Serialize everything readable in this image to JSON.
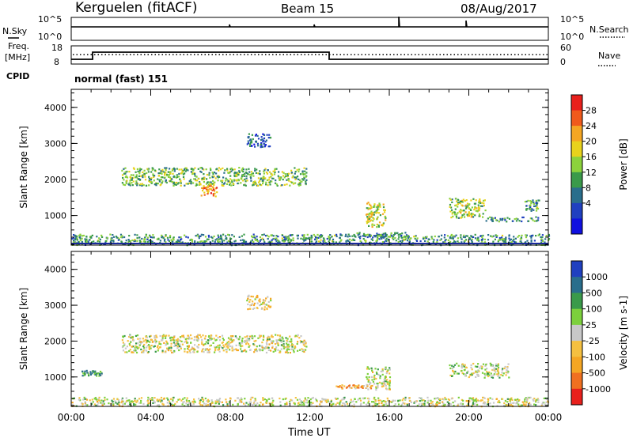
{
  "header": {
    "station": "Kerguelen (fitACF)",
    "beam": "Beam 15",
    "date": "08/Aug/2017"
  },
  "top_panels": {
    "nsky_label": "N.Sky",
    "nsearch_label": "N.Search",
    "nsky_ticks": [
      "10^5",
      "10^0"
    ],
    "nsearch_ticks": [
      "10^5",
      "10^0"
    ],
    "freq_label_1": "Freq.",
    "freq_label_2": "[MHz]",
    "freq_ticks": [
      "18",
      "8"
    ],
    "nave_label": "Nave",
    "nave_ticks": [
      "60",
      "0"
    ],
    "cpid_label": "CPID",
    "cpid_value": "normal (fast) 151"
  },
  "chart_data": [
    {
      "type": "heatmap",
      "name": "power",
      "ylabel": "Slant Range [km]",
      "xlabel": "Time UT",
      "xlim": [
        0,
        24
      ],
      "ylim": [
        180,
        4500
      ],
      "yticks": [
        1000,
        2000,
        3000,
        4000
      ],
      "xticks": [
        "00:00",
        "04:00",
        "08:00",
        "12:00",
        "16:00",
        "20:00",
        "00:00"
      ],
      "colorbar": {
        "label": "Power [dB]",
        "ticks": [
          "28",
          "24",
          "20",
          "16",
          "12",
          "8",
          "4"
        ],
        "colors": [
          "#e8201c",
          "#f05a1c",
          "#f5a623",
          "#e8d21c",
          "#8cd23c",
          "#3a9a4a",
          "#2a6e8c",
          "#2040c0",
          "#1010e0"
        ]
      },
      "blobs": [
        {
          "t0": 2.5,
          "t1": 11.8,
          "r0": 1850,
          "r1": 2350,
          "level": 0.45
        },
        {
          "t0": 6.5,
          "t1": 7.3,
          "r0": 1550,
          "r1": 1850,
          "level": 0.8
        },
        {
          "t0": 8.8,
          "t1": 10.0,
          "r0": 2900,
          "r1": 3300,
          "level": 0.2
        },
        {
          "t0": 14.8,
          "t1": 15.8,
          "r0": 700,
          "r1": 1400,
          "level": 0.55
        },
        {
          "t0": 13.5,
          "t1": 17.0,
          "r0": 420,
          "r1": 560,
          "level": 0.3
        },
        {
          "t0": 19.0,
          "t1": 20.8,
          "r0": 950,
          "r1": 1500,
          "level": 0.5
        },
        {
          "t0": 20.8,
          "t1": 23.5,
          "r0": 850,
          "r1": 980,
          "level": 0.3
        },
        {
          "t0": 22.8,
          "t1": 23.5,
          "r0": 1150,
          "r1": 1450,
          "level": 0.35
        },
        {
          "t0": 0.0,
          "t1": 24.0,
          "r0": 200,
          "r1": 500,
          "level": 0.35
        }
      ]
    },
    {
      "type": "heatmap",
      "name": "velocity",
      "ylabel": "Slant Range [km]",
      "xlabel": "Time UT",
      "xlim": [
        0,
        24
      ],
      "ylim": [
        180,
        4500
      ],
      "yticks": [
        1000,
        2000,
        3000,
        4000
      ],
      "xticks": [
        "00:00",
        "04:00",
        "08:00",
        "12:00",
        "16:00",
        "20:00",
        "00:00"
      ],
      "colorbar": {
        "label": "Velocity [m s-1]",
        "ticks": [
          "1000",
          "500",
          "100",
          "25",
          "-25",
          "-100",
          "-500",
          "-1000"
        ],
        "colors": [
          "#2040c0",
          "#2a6e8c",
          "#3a9a4a",
          "#7cd03c",
          "#c8c8c8",
          "#f5c040",
          "#f5a623",
          "#f07020",
          "#e8201c"
        ]
      },
      "blobs": [
        {
          "t0": 2.5,
          "t1": 11.8,
          "r0": 1700,
          "r1": 2200,
          "level": 0.5
        },
        {
          "t0": 8.8,
          "t1": 10.0,
          "r0": 2900,
          "r1": 3300,
          "level": 0.4
        },
        {
          "t0": 13.3,
          "t1": 15.5,
          "r0": 700,
          "r1": 800,
          "level": 0.3
        },
        {
          "t0": 14.8,
          "t1": 16.0,
          "r0": 650,
          "r1": 1300,
          "level": 0.5
        },
        {
          "t0": 19.0,
          "t1": 22.0,
          "r0": 1000,
          "r1": 1400,
          "level": 0.55
        },
        {
          "t0": 0.5,
          "t1": 1.5,
          "r0": 1050,
          "r1": 1200,
          "level": 0.75
        },
        {
          "t0": 0.0,
          "t1": 24.0,
          "r0": 200,
          "r1": 450,
          "level": 0.5
        }
      ]
    }
  ]
}
